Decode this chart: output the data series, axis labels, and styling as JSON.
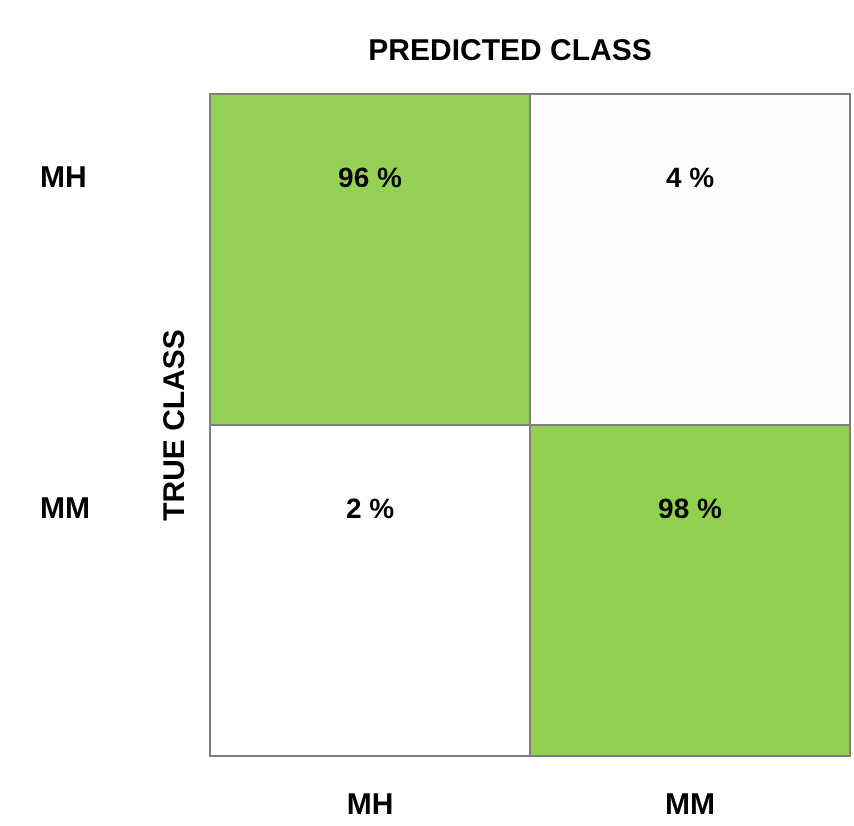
{
  "chart_data": {
    "type": "heatmap",
    "title": "PREDICTED CLASS",
    "ylabel": "TRUE CLASS",
    "color": "#92d050",
    "categories": [
      "MH",
      "MM"
    ],
    "y_categories": [
      "MH",
      "MM"
    ],
    "cells": [
      [
        96,
        4
      ],
      [
        2,
        98
      ]
    ],
    "cell_labels": [
      [
        "96 %",
        "4 %"
      ],
      [
        "2 %",
        "98 %"
      ]
    ]
  }
}
